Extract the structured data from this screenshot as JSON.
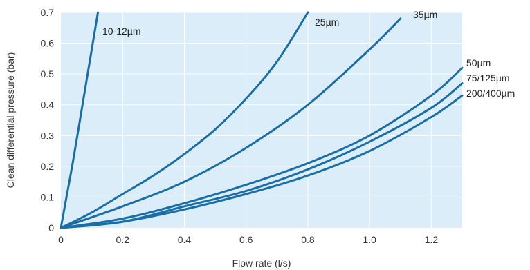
{
  "chart_data": {
    "type": "line",
    "title": "",
    "xlabel": "Flow rate (l/s)",
    "ylabel": "Clean differential pressure (bar)",
    "xlim": [
      0,
      1.3
    ],
    "ylim": [
      0,
      0.7
    ],
    "x_ticks": [
      "0",
      "0.2",
      "0.4",
      "0.6",
      "0.8",
      "1.0",
      "1.2"
    ],
    "y_ticks": [
      "0",
      "0.1",
      "0.2",
      "0.3",
      "0.4",
      "0.5",
      "0.6",
      "0.7"
    ],
    "grid": true,
    "colors": {
      "plot_bg": "#daedf8",
      "grid": "#ffffff",
      "line": "#1a6ea8"
    },
    "series": [
      {
        "name": "10-12µm",
        "x": [
          0,
          0.02,
          0.04,
          0.06,
          0.08,
          0.1,
          0.12
        ],
        "y": [
          0,
          0.11,
          0.22,
          0.34,
          0.46,
          0.58,
          0.7
        ]
      },
      {
        "name": "25µm",
        "x": [
          0,
          0.1,
          0.2,
          0.3,
          0.4,
          0.5,
          0.6,
          0.7,
          0.8
        ],
        "y": [
          0,
          0.05,
          0.11,
          0.17,
          0.24,
          0.32,
          0.42,
          0.54,
          0.7
        ]
      },
      {
        "name": "35µm",
        "x": [
          0,
          0.2,
          0.4,
          0.6,
          0.8,
          1.0,
          1.1
        ],
        "y": [
          0,
          0.07,
          0.15,
          0.26,
          0.4,
          0.58,
          0.68
        ]
      },
      {
        "name": "50µm",
        "x": [
          0,
          0.2,
          0.4,
          0.6,
          0.8,
          1.0,
          1.2,
          1.3
        ],
        "y": [
          0,
          0.03,
          0.08,
          0.14,
          0.21,
          0.3,
          0.43,
          0.52
        ]
      },
      {
        "name": "75/125µm",
        "x": [
          0,
          0.2,
          0.4,
          0.6,
          0.8,
          1.0,
          1.2,
          1.3
        ],
        "y": [
          0,
          0.02,
          0.07,
          0.12,
          0.19,
          0.28,
          0.39,
          0.47
        ]
      },
      {
        "name": "200/400µm",
        "x": [
          0,
          0.2,
          0.4,
          0.6,
          0.8,
          1.0,
          1.2,
          1.3
        ],
        "y": [
          0,
          0.02,
          0.06,
          0.11,
          0.17,
          0.25,
          0.36,
          0.43
        ]
      }
    ]
  }
}
